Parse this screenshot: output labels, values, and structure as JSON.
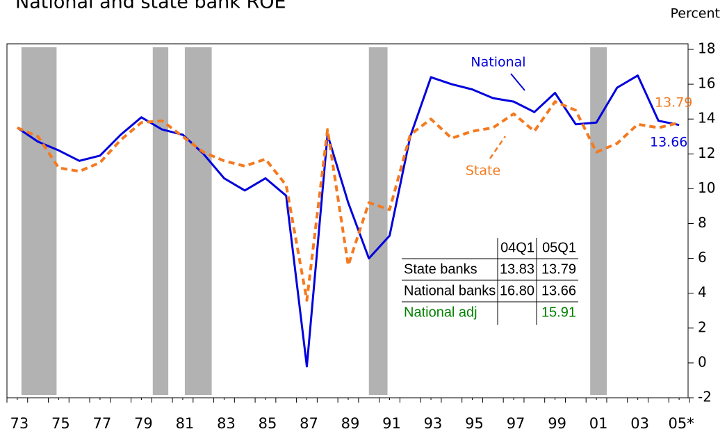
{
  "chart_data": {
    "type": "line",
    "title": "National and state bank ROE",
    "y_axis_label": "Percent",
    "x": [
      1973,
      1974,
      1975,
      1976,
      1977,
      1978,
      1979,
      1980,
      1981,
      1982,
      1983,
      1984,
      1985,
      1986,
      1987,
      1988,
      1989,
      1990,
      1991,
      1992,
      1993,
      1994,
      1995,
      1996,
      1997,
      1998,
      1999,
      2000,
      2001,
      2002,
      2003,
      2004,
      2005
    ],
    "series": [
      {
        "name": "National",
        "color": "#0000dd",
        "dashed": false,
        "values": [
          13.5,
          12.7,
          12.2,
          11.6,
          11.9,
          13.1,
          14.1,
          13.4,
          13.1,
          12.0,
          10.6,
          9.9,
          10.6,
          9.6,
          -0.2,
          13.1,
          9.2,
          6.0,
          7.3,
          13.0,
          16.4,
          16.0,
          15.7,
          15.2,
          15.0,
          14.4,
          15.5,
          13.7,
          13.8,
          15.8,
          16.5,
          13.9,
          13.66
        ]
      },
      {
        "name": "State",
        "color": "#f47a20",
        "dashed": true,
        "values": [
          13.5,
          13.0,
          11.2,
          11.0,
          11.5,
          12.8,
          13.8,
          13.9,
          13.0,
          12.1,
          11.6,
          11.3,
          11.7,
          10.2,
          3.6,
          13.4,
          5.6,
          9.2,
          8.8,
          13.1,
          14.0,
          12.9,
          13.3,
          13.5,
          14.3,
          13.3,
          15.0,
          14.5,
          12.1,
          12.6,
          13.7,
          13.5,
          13.79
        ]
      }
    ],
    "recessions": [
      [
        1973.2,
        1974.9
      ],
      [
        1979.55,
        1980.3
      ],
      [
        1981.1,
        1982.4
      ],
      [
        1990.0,
        1990.9
      ],
      [
        2000.7,
        2001.5
      ]
    ],
    "recession_color": "#b2b2b2",
    "xlim": [
      1972.5,
      2005.5
    ],
    "xticks": [
      {
        "value": 1973,
        "label": "73"
      },
      {
        "value": 1975,
        "label": "75"
      },
      {
        "value": 1977,
        "label": "77"
      },
      {
        "value": 1979,
        "label": "79"
      },
      {
        "value": 1981,
        "label": "81"
      },
      {
        "value": 1983,
        "label": "83"
      },
      {
        "value": 1985,
        "label": "85"
      },
      {
        "value": 1987,
        "label": "87"
      },
      {
        "value": 1989,
        "label": "89"
      },
      {
        "value": 1991,
        "label": "91"
      },
      {
        "value": 1993,
        "label": "93"
      },
      {
        "value": 1995,
        "label": "95"
      },
      {
        "value": 1997,
        "label": "97"
      },
      {
        "value": 1999,
        "label": "99"
      },
      {
        "value": 2001,
        "label": "01"
      },
      {
        "value": 2003,
        "label": "03"
      },
      {
        "value": 2005,
        "label": "05*"
      }
    ],
    "ylim": [
      -2,
      18
    ],
    "yticks": [
      -2,
      0,
      2,
      4,
      6,
      8,
      10,
      12,
      14,
      16,
      18
    ],
    "table": {
      "columns": [
        "04Q1",
        "05Q1"
      ],
      "rows": [
        {
          "label": "State banks",
          "values": [
            "13.83",
            "13.79"
          ],
          "color": "#000000"
        },
        {
          "label": "National banks",
          "values": [
            "16.80",
            "13.66"
          ],
          "color": "#000000"
        },
        {
          "label": "National adj",
          "values": [
            null,
            "15.91"
          ],
          "color": "#008000"
        }
      ]
    }
  }
}
